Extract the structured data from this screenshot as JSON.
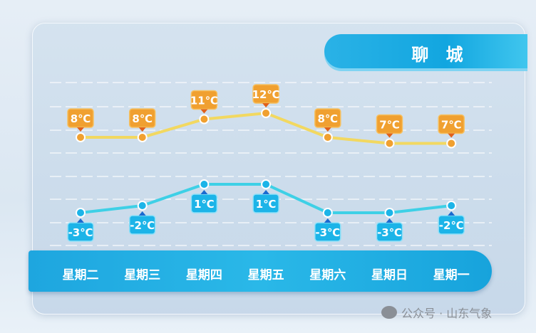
{
  "title": "聊 城",
  "chart_data": {
    "type": "line",
    "categories": [
      "星期二",
      "星期三",
      "星期四",
      "星期五",
      "星期六",
      "星期日",
      "星期一"
    ],
    "series": [
      {
        "values": [
          8,
          8,
          11,
          12,
          8,
          7,
          7
        ],
        "labels": [
          "8℃",
          "8℃",
          "11℃",
          "12℃",
          "8℃",
          "7℃",
          "7℃"
        ],
        "color": "#f0a030",
        "line_color": "#f2d860"
      },
      {
        "values": [
          -3,
          -2,
          1,
          1,
          -3,
          -3,
          -2
        ],
        "labels": [
          "-3℃",
          "-2℃",
          "1℃",
          "1℃",
          "-3℃",
          "-3℃",
          "-2℃"
        ],
        "color": "#1cb4e8",
        "line_color": "#3ed0e6"
      }
    ],
    "unit": "℃",
    "grid": true
  },
  "watermark": "公众号 · 山东气象"
}
